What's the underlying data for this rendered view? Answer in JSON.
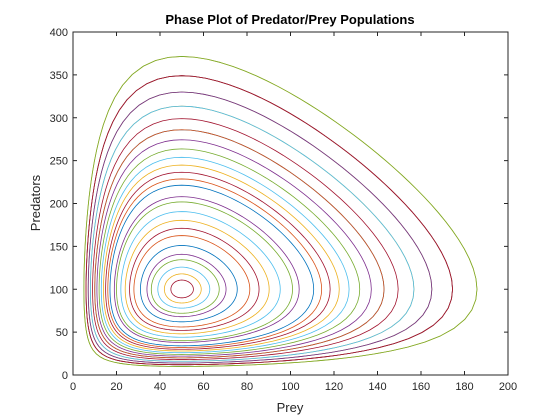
{
  "chart_data": {
    "type": "line",
    "title": "Phase Plot of Predator/Prey Populations",
    "xlabel": "Prey",
    "ylabel": "Predators",
    "xlim": [
      0,
      200
    ],
    "ylim": [
      0,
      400
    ],
    "x_ticks": [
      0,
      20,
      40,
      60,
      80,
      100,
      120,
      140,
      160,
      180,
      200
    ],
    "y_ticks": [
      0,
      50,
      100,
      150,
      200,
      250,
      300,
      350,
      400
    ],
    "grid": false,
    "equilibrium": {
      "prey": 50,
      "predators": 100
    },
    "series": [
      {
        "color": "#A2142F",
        "prey_range": [
          45,
          55
        ],
        "predator_range": [
          92,
          108
        ]
      },
      {
        "color": "#EDB120",
        "prey_range": [
          42,
          59
        ],
        "predator_range": [
          86,
          115
        ]
      },
      {
        "color": "#4DBEEE",
        "prey_range": [
          39,
          63
        ],
        "predator_range": [
          80,
          123
        ]
      },
      {
        "color": "#77AC30",
        "prey_range": [
          36,
          67
        ],
        "predator_range": [
          74,
          132
        ]
      },
      {
        "color": "#7E2F8E",
        "prey_range": [
          34,
          71
        ],
        "predator_range": [
          68,
          141
        ]
      },
      {
        "color": "#0072BD",
        "prey_range": [
          31,
          76
        ],
        "predator_range": [
          62,
          150
        ]
      },
      {
        "color": "#D95319",
        "prey_range": [
          28,
          80
        ],
        "predator_range": [
          57,
          159
        ]
      },
      {
        "color": "#A2142F",
        "prey_range": [
          26,
          85
        ],
        "predator_range": [
          52,
          168
        ]
      },
      {
        "color": "#EDB120",
        "prey_range": [
          24,
          90
        ],
        "predator_range": [
          47,
          178
        ]
      },
      {
        "color": "#4DBEEE",
        "prey_range": [
          22,
          95
        ],
        "predator_range": [
          43,
          187
        ]
      },
      {
        "color": "#77AC30",
        "prey_range": [
          20,
          100
        ],
        "predator_range": [
          39,
          197
        ]
      },
      {
        "color": "#7E2F8E",
        "prey_range": [
          19,
          105
        ],
        "predator_range": [
          36,
          206
        ]
      },
      {
        "color": "#0072BD",
        "prey_range": [
          17,
          110
        ],
        "predator_range": [
          32,
          216
        ]
      },
      {
        "color": "#D95319",
        "prey_range": [
          16,
          115
        ],
        "predator_range": [
          30,
          225
        ]
      },
      {
        "color": "#A2142F",
        "prey_range": [
          15,
          120
        ],
        "predator_range": [
          27,
          235
        ]
      },
      {
        "color": "#EDB120",
        "prey_range": [
          14,
          125
        ],
        "predator_range": [
          25,
          245
        ]
      },
      {
        "color": "#4DBEEE",
        "prey_range": [
          13,
          130
        ],
        "predator_range": [
          23,
          254
        ]
      },
      {
        "color": "#77AC30",
        "prey_range": [
          12,
          135
        ],
        "predator_range": [
          21,
          264
        ]
      },
      {
        "color": "#7E2F8E",
        "prey_range": [
          11,
          140
        ],
        "predator_range": [
          19,
          274
        ]
      },
      {
        "color": "#0072BD",
        "prey_range": [
          10,
          145
        ],
        "predator_range": [
          18,
          284
        ]
      },
      {
        "color": "#D95319",
        "prey_range": [
          10,
          150
        ],
        "predator_range": [
          16,
          293
        ]
      },
      {
        "color": "#A2142F",
        "prey_range": [
          9,
          155
        ],
        "predator_range": [
          15,
          303
        ]
      },
      {
        "color": "#EDB120",
        "prey_range": [
          8,
          160
        ],
        "predator_range": [
          14,
          313
        ]
      },
      {
        "color": "#4DBEEE",
        "prey_range": [
          8,
          166
        ],
        "predator_range": [
          13,
          323
        ]
      },
      {
        "color": "#77AC30",
        "prey_range": [
          7,
          171
        ],
        "predator_range": [
          12,
          333
        ]
      },
      {
        "color": "#7E2F8E",
        "prey_range": [
          7,
          176
        ],
        "predator_range": [
          11,
          343
        ]
      },
      {
        "color": "#0072BD",
        "prey_range": [
          6,
          181
        ],
        "predator_range": [
          10,
          352
        ]
      },
      {
        "color": "#D95319",
        "prey_range": [
          6,
          186
        ],
        "predator_range": [
          10,
          362
        ]
      },
      {
        "color": "#A2142F",
        "prey_range": [
          6,
          191
        ],
        "predator_range": [
          9,
          372
        ]
      },
      {
        "color": "#EDB120",
        "prey_range": [
          5,
          195
        ],
        "predator_range": [
          8,
          381
        ]
      },
      {
        "color": "#77AC30",
        "prey_range": [
          5,
          200
        ],
        "predator_range": [
          8,
          391
        ]
      }
    ]
  }
}
